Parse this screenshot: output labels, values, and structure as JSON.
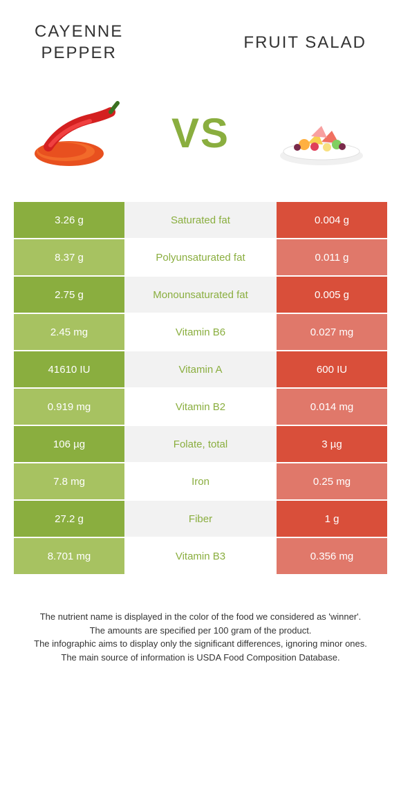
{
  "left_title": "CAYENNE\nPEPPER",
  "right_title": "FRUIT SALAD",
  "vs_label": "VS",
  "colors": {
    "left_strong": "#8aae3f",
    "left_dim": "#a7c261",
    "right_strong": "#d94f3a",
    "right_dim": "#e0786a",
    "mid_bg": "#f2f2f2",
    "winner_text_left": "#8aae3f",
    "winner_text_right": "#d94f3a"
  },
  "rows": [
    {
      "label": "Saturated fat",
      "left": "3.26 g",
      "right": "0.004 g",
      "winner": "left"
    },
    {
      "label": "Polyunsaturated fat",
      "left": "8.37 g",
      "right": "0.011 g",
      "winner": "left"
    },
    {
      "label": "Monounsaturated fat",
      "left": "2.75 g",
      "right": "0.005 g",
      "winner": "left"
    },
    {
      "label": "Vitamin B6",
      "left": "2.45 mg",
      "right": "0.027 mg",
      "winner": "left"
    },
    {
      "label": "Vitamin A",
      "left": "41610 IU",
      "right": "600 IU",
      "winner": "left"
    },
    {
      "label": "Vitamin B2",
      "left": "0.919 mg",
      "right": "0.014 mg",
      "winner": "left"
    },
    {
      "label": "Folate, total",
      "left": "106 µg",
      "right": "3 µg",
      "winner": "left"
    },
    {
      "label": "Iron",
      "left": "7.8 mg",
      "right": "0.25 mg",
      "winner": "left"
    },
    {
      "label": "Fiber",
      "left": "27.2 g",
      "right": "1 g",
      "winner": "left"
    },
    {
      "label": "Vitamin B3",
      "left": "8.701 mg",
      "right": "0.356 mg",
      "winner": "left"
    }
  ],
  "footer_lines": [
    "The nutrient name is displayed in the color of the food we considered as 'winner'.",
    "The amounts are specified per 100 gram of the product.",
    "The infographic aims to display only the significant differences, ignoring minor ones.",
    "The main source of information is USDA Food Composition Database."
  ]
}
